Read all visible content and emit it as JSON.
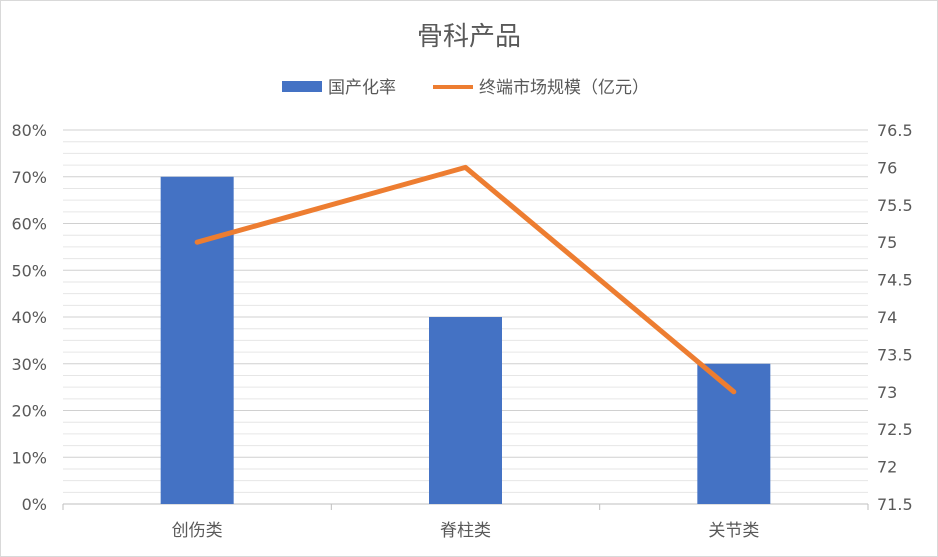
{
  "chart_data": {
    "type": "bar+line",
    "title": "骨科产品",
    "categories": [
      "创伤类",
      "脊柱类",
      "关节类"
    ],
    "series": [
      {
        "name": "国产化率",
        "type": "bar",
        "axis": "left",
        "values": [
          0.7,
          0.4,
          0.3
        ],
        "color": "#4472C4"
      },
      {
        "name": "终端市场规模（亿元）",
        "type": "line",
        "axis": "right",
        "values": [
          75,
          76,
          73
        ],
        "color": "#ED7D31"
      }
    ],
    "y_left": {
      "min": 0,
      "max": 0.8,
      "ticks": [
        "0%",
        "10%",
        "20%",
        "30%",
        "40%",
        "50%",
        "60%",
        "70%",
        "80%"
      ]
    },
    "y_right": {
      "min": 71.5,
      "max": 76.5,
      "ticks": [
        "71.5",
        "72",
        "72.5",
        "73",
        "73.5",
        "74",
        "74.5",
        "75",
        "75.5",
        "76",
        "76.5"
      ]
    },
    "grid": true,
    "legend": "top"
  }
}
